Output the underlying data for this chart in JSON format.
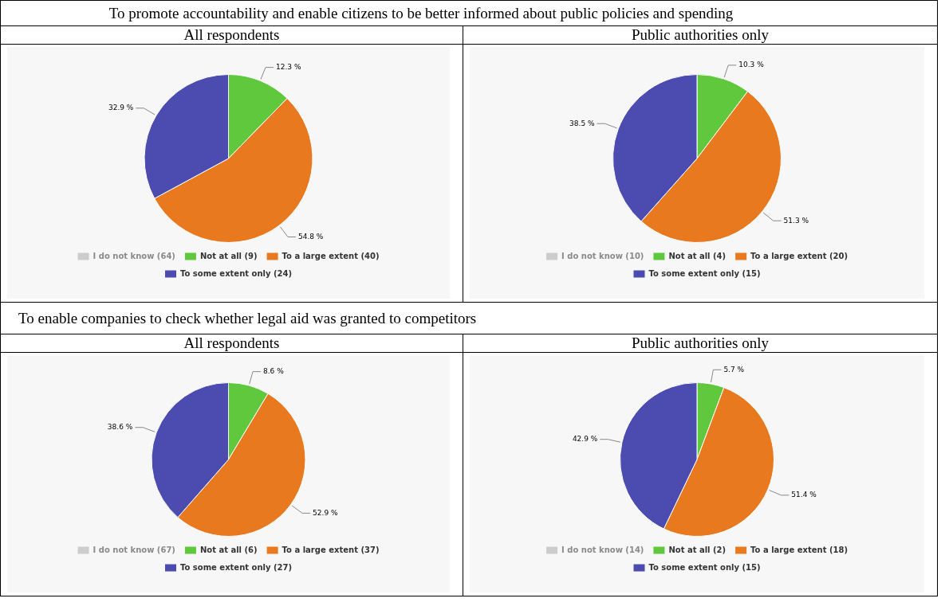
{
  "chart_data": [
    {
      "type": "pie",
      "title": "To promote accountability and enable citizens to be better informed about public policies and spending",
      "subtitle": "All respondents",
      "categories": [
        "I do not know (64)",
        "Not at all (9)",
        "To a large extent (40)",
        "To some extent only (24)"
      ],
      "values": [
        null,
        12.3,
        54.8,
        32.9
      ],
      "value_labels": [
        null,
        "12.3 %",
        "54.8 %",
        "32.9 %"
      ],
      "colors": [
        "#cccccc",
        "#5fc83c",
        "#e8791f",
        "#4b4bb0"
      ],
      "legend": "bottom"
    },
    {
      "type": "pie",
      "subtitle": "Public authorities only",
      "categories": [
        "I do not know (10)",
        "Not at all (4)",
        "To a large extent (20)",
        "To some extent only (15)"
      ],
      "values": [
        null,
        10.3,
        51.3,
        38.5
      ],
      "value_labels": [
        null,
        "10.3 %",
        "51.3 %",
        "38.5 %"
      ],
      "colors": [
        "#cccccc",
        "#5fc83c",
        "#e8791f",
        "#4b4bb0"
      ],
      "legend": "bottom"
    },
    {
      "type": "pie",
      "title": "To enable companies to check whether legal aid was granted to competitors",
      "subtitle": "All respondents",
      "categories": [
        "I do not know (67)",
        "Not at all (6)",
        "To a large extent (37)",
        "To some extent only (27)"
      ],
      "values": [
        null,
        8.6,
        52.9,
        38.6
      ],
      "value_labels": [
        null,
        "8.6 %",
        "52.9 %",
        "38.6 %"
      ],
      "colors": [
        "#cccccc",
        "#5fc83c",
        "#e8791f",
        "#4b4bb0"
      ],
      "legend": "bottom"
    },
    {
      "type": "pie",
      "subtitle": "Public authorities only",
      "categories": [
        "I do not know (14)",
        "Not at all (2)",
        "To a large extent (18)",
        "To some extent only (15)"
      ],
      "values": [
        null,
        5.7,
        51.4,
        42.9
      ],
      "value_labels": [
        null,
        "5.7 %",
        "51.4 %",
        "42.9 %"
      ],
      "colors": [
        "#cccccc",
        "#5fc83c",
        "#e8791f",
        "#4b4bb0"
      ],
      "legend": "bottom"
    }
  ]
}
